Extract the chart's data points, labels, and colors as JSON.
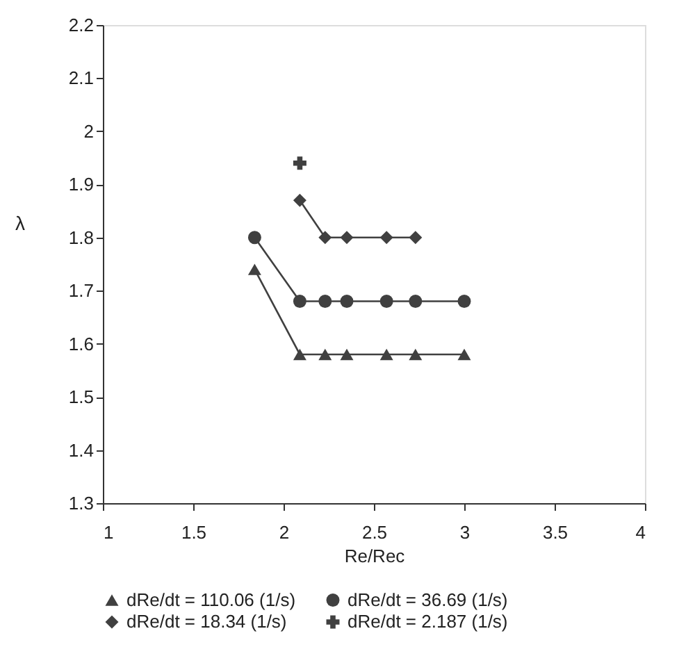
{
  "chart_data": {
    "type": "line",
    "xlabel": "Re/Rec",
    "ylabel": "λ",
    "xlim": [
      1,
      4
    ],
    "xticks": [
      1,
      1.5,
      2,
      2.5,
      3,
      3.5,
      4
    ],
    "ylim": [
      1.3,
      2.2
    ],
    "yticks": [
      1.3,
      1.4,
      1.5,
      1.6,
      1.7,
      1.8,
      1.9,
      2,
      2.1,
      2.2
    ],
    "grid": false,
    "legend": "bottom",
    "line_style": "solid",
    "series": [
      {
        "name": "dRe/dt = 110.06 (1/s)",
        "color": "#404040",
        "marker": "triangle",
        "x": [
          1.84,
          2.09,
          2.23,
          2.35,
          2.57,
          2.73,
          3.0
        ],
        "values": [
          1.74,
          1.58,
          1.58,
          1.58,
          1.58,
          1.58,
          1.58
        ]
      },
      {
        "name": "dRe/dt = 36.69 (1/s)",
        "color": "#404040",
        "marker": "circle",
        "x": [
          1.84,
          2.09,
          2.23,
          2.35,
          2.57,
          2.73,
          3.0
        ],
        "values": [
          1.8,
          1.68,
          1.68,
          1.68,
          1.68,
          1.68,
          1.68
        ]
      },
      {
        "name": "dRe/dt = 18.34 (1/s)",
        "color": "#404040",
        "marker": "diamond",
        "x": [
          2.09,
          2.23,
          2.35,
          2.57,
          2.73
        ],
        "values": [
          1.87,
          1.8,
          1.8,
          1.8,
          1.8
        ]
      },
      {
        "name": "dRe/dt = 2.187 (1/s)",
        "type": "scatter",
        "color": "#404040",
        "marker": "cross",
        "x": [
          2.09
        ],
        "values": [
          1.94
        ]
      }
    ]
  }
}
